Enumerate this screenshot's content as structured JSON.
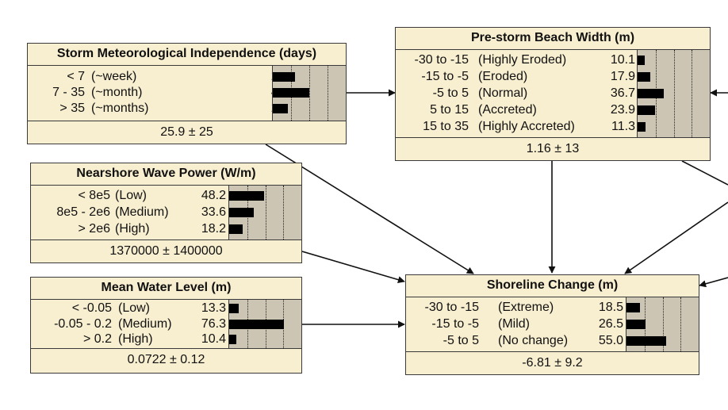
{
  "diagram": {
    "nodes": [
      {
        "id": "storm",
        "title": "Storm Meteorological Independence (days)",
        "states": [
          {
            "range": "< 7",
            "label": "(~week)",
            "value": "29.9"
          },
          {
            "range": "7 - 35",
            "label": "(~month)",
            "value": "49.6"
          },
          {
            "range": "> 35",
            "label": "(~months)",
            "value": "20.4"
          }
        ],
        "summary": "25.9 ± 25"
      },
      {
        "id": "beach",
        "title": "Pre-storm Beach Width (m)",
        "states": [
          {
            "range": "-30 to -15",
            "label": "(Highly Eroded)",
            "value": "10.1"
          },
          {
            "range": "-15 to -5",
            "label": "(Eroded)",
            "value": "17.9"
          },
          {
            "range": "-5 to 5",
            "label": "(Normal)",
            "value": "36.7"
          },
          {
            "range": "5 to 15",
            "label": "(Accreted)",
            "value": "23.9"
          },
          {
            "range": "15 to 35",
            "label": "(Highly Accreted)",
            "value": "11.3"
          }
        ],
        "summary": "1.16 ± 13"
      },
      {
        "id": "wave",
        "title": "Nearshore Wave Power (W/m)",
        "states": [
          {
            "range": "< 8e5",
            "label": "(Low)",
            "value": "48.2"
          },
          {
            "range": "8e5 - 2e6",
            "label": "(Medium)",
            "value": "33.6"
          },
          {
            "range": "> 2e6",
            "label": "(High)",
            "value": "18.2"
          }
        ],
        "summary": "1370000 ± 1400000"
      },
      {
        "id": "water",
        "title": "Mean Water Level (m)",
        "states": [
          {
            "range": "< -0.05",
            "label": "(Low)",
            "value": "13.3"
          },
          {
            "range": "-0.05 - 0.2",
            "label": "(Medium)",
            "value": "76.3"
          },
          {
            "range": "> 0.2",
            "label": "(High)",
            "value": "10.4"
          }
        ],
        "summary": "0.0722 ± 0.12"
      },
      {
        "id": "shore",
        "title": "Shoreline Change (m)",
        "states": [
          {
            "range": "-30 to -15",
            "label": "(Extreme)",
            "value": "18.5"
          },
          {
            "range": "-15 to -5",
            "label": "(Mild)",
            "value": "26.5"
          },
          {
            "range": "-5 to 5",
            "label": "(No change)",
            "value": "55.0"
          }
        ],
        "summary": "-6.81 ± 9.2"
      }
    ],
    "edges": [
      {
        "from": "storm",
        "to": "beach"
      },
      {
        "from": "storm",
        "to": "shore"
      },
      {
        "from": "wave",
        "to": "shore"
      },
      {
        "from": "water",
        "to": "shore"
      },
      {
        "from": "beach",
        "to": "shore"
      }
    ]
  },
  "colors": {
    "node_background": "#f8eed0",
    "bar_area_background": "#cdc5b3",
    "bar": "#000000",
    "border": "#3a3a3a"
  }
}
